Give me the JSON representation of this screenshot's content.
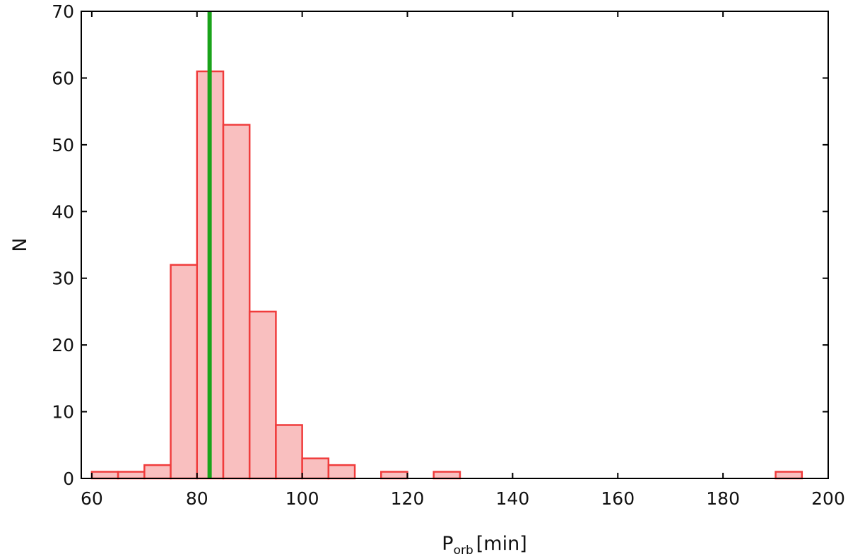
{
  "chart_data": {
    "type": "histogram",
    "xlabel": {
      "main": "P",
      "sub": "orb",
      "unit": "[min]"
    },
    "ylabel": "N",
    "xlim": [
      58,
      200
    ],
    "ylim": [
      0,
      70
    ],
    "xticks": [
      60,
      80,
      100,
      120,
      140,
      160,
      180,
      200
    ],
    "yticks": [
      0,
      10,
      20,
      30,
      40,
      50,
      60,
      70
    ],
    "bins": [
      {
        "x0": 60,
        "x1": 65,
        "count": 1
      },
      {
        "x0": 65,
        "x1": 70,
        "count": 1
      },
      {
        "x0": 70,
        "x1": 75,
        "count": 2
      },
      {
        "x0": 75,
        "x1": 80,
        "count": 32
      },
      {
        "x0": 80,
        "x1": 85,
        "count": 61
      },
      {
        "x0": 85,
        "x1": 90,
        "count": 53
      },
      {
        "x0": 90,
        "x1": 95,
        "count": 25
      },
      {
        "x0": 95,
        "x1": 100,
        "count": 8
      },
      {
        "x0": 100,
        "x1": 105,
        "count": 3
      },
      {
        "x0": 105,
        "x1": 110,
        "count": 2
      },
      {
        "x0": 115,
        "x1": 120,
        "count": 1
      },
      {
        "x0": 125,
        "x1": 130,
        "count": 1
      },
      {
        "x0": 190,
        "x1": 195,
        "count": 1
      }
    ],
    "vline": {
      "x": 82.4,
      "color": "#1aa31a"
    },
    "colors": {
      "bar_fill": "#f9bfbf",
      "bar_edge": "#f03c3c",
      "axis": "#000000"
    },
    "grid": false
  }
}
